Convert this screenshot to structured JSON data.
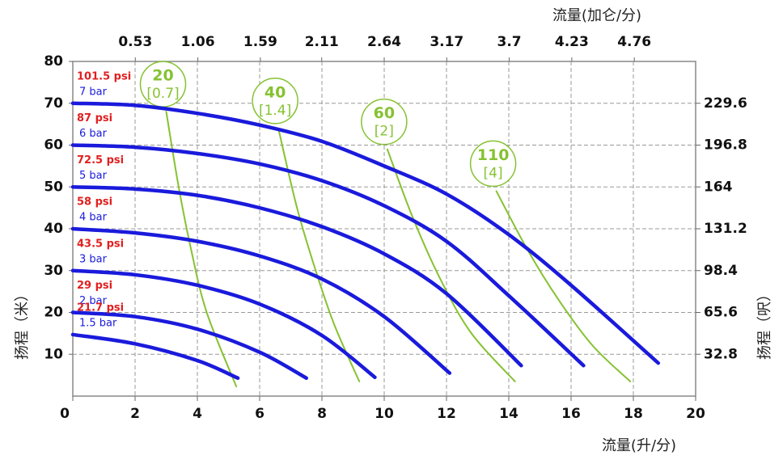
{
  "chart_data": {
    "type": "line",
    "x_label": "流量(升/分)",
    "x2_label": "流量(加仑/分)",
    "y_label": "扬程（米）",
    "y2_label": "扬程（呎）",
    "xlim": [
      0,
      20
    ],
    "xticks": [
      0,
      2,
      4,
      6,
      8,
      10,
      12,
      14,
      16,
      18,
      20
    ],
    "ylim": [
      0,
      80
    ],
    "yticks": [
      10,
      20,
      30,
      40,
      50,
      60,
      70,
      80
    ],
    "x2lim": [
      0,
      5.28
    ],
    "x2ticks": [
      0.53,
      1.06,
      1.59,
      2.11,
      2.64,
      3.17,
      3.7,
      4.23,
      4.76
    ],
    "y2lim": [
      0,
      262.4
    ],
    "y2ticks": [
      32.8,
      65.6,
      98.4,
      131.2,
      164,
      196.8,
      229.6
    ],
    "grid": true,
    "series": [
      {
        "psi": "101.5 psi",
        "bar": "7 bar",
        "color": "#1a1adc",
        "x": [
          0,
          2,
          4,
          6,
          8,
          10,
          12,
          14,
          16,
          18.8
        ],
        "values": [
          70,
          69.5,
          67.6,
          64.8,
          60.9,
          55,
          48.3,
          38.6,
          26.5,
          7.9
        ]
      },
      {
        "psi": "87 psi",
        "bar": "6 bar",
        "color": "#1a1adc",
        "x": [
          0,
          2,
          4,
          6,
          8,
          10,
          12,
          14,
          16.4
        ],
        "values": [
          60,
          59.5,
          58,
          55.5,
          51.5,
          45.5,
          37,
          24,
          7.3
        ]
      },
      {
        "psi": "72.5 psi",
        "bar": "5 bar",
        "color": "#1a1adc",
        "x": [
          0,
          2,
          4,
          6,
          8,
          10,
          12,
          14.4
        ],
        "values": [
          50,
          49.5,
          48,
          45,
          40.5,
          34,
          24.5,
          7.3
        ]
      },
      {
        "psi": "58 psi",
        "bar": "4 bar",
        "color": "#1a1adc",
        "x": [
          0,
          2,
          4,
          6,
          8,
          10,
          12.1
        ],
        "values": [
          40,
          39,
          37,
          33.5,
          28,
          19,
          5.5
        ]
      },
      {
        "psi": "43.5 psi",
        "bar": "3 bar",
        "color": "#1a1adc",
        "x": [
          0,
          2,
          4,
          6,
          8,
          9.7
        ],
        "values": [
          30,
          29,
          26.5,
          22,
          14.5,
          4.5
        ]
      },
      {
        "psi": "29 psi",
        "bar": "2 bar",
        "color": "#1a1adc",
        "x": [
          0,
          2,
          4,
          6,
          7.5
        ],
        "values": [
          20,
          19,
          16,
          10.5,
          4.3
        ]
      },
      {
        "psi": "21.7 psi",
        "bar": "1.5 bar",
        "color": "#1a1adc",
        "x": [
          0,
          2,
          4,
          5.3
        ],
        "values": [
          14.7,
          12.5,
          8.5,
          4.3
        ]
      }
    ],
    "air_curves": [
      {
        "label": "20",
        "sublabel": "[0.7]",
        "color": "#86c232",
        "x": [
          3,
          3.4,
          3.8,
          4.3,
          5.25
        ],
        "values": [
          68,
          50,
          35,
          20,
          2.3
        ]
      },
      {
        "label": "40",
        "sublabel": "[1.4]",
        "color": "#86c232",
        "x": [
          6.6,
          7.2,
          7.8,
          8.4,
          9.2
        ],
        "values": [
          64,
          45,
          30,
          17,
          3.5
        ]
      },
      {
        "label": "60",
        "sublabel": "[2]",
        "color": "#86c232",
        "x": [
          10.1,
          10.9,
          11.8,
          12.8,
          14.2
        ],
        "values": [
          59,
          43,
          28,
          15,
          3.5
        ]
      },
      {
        "label": "110",
        "sublabel": "[4]",
        "color": "#86c232",
        "x": [
          13.6,
          14.6,
          15.6,
          16.7,
          17.9
        ],
        "values": [
          49,
          35,
          23,
          12,
          3.5
        ]
      }
    ]
  }
}
